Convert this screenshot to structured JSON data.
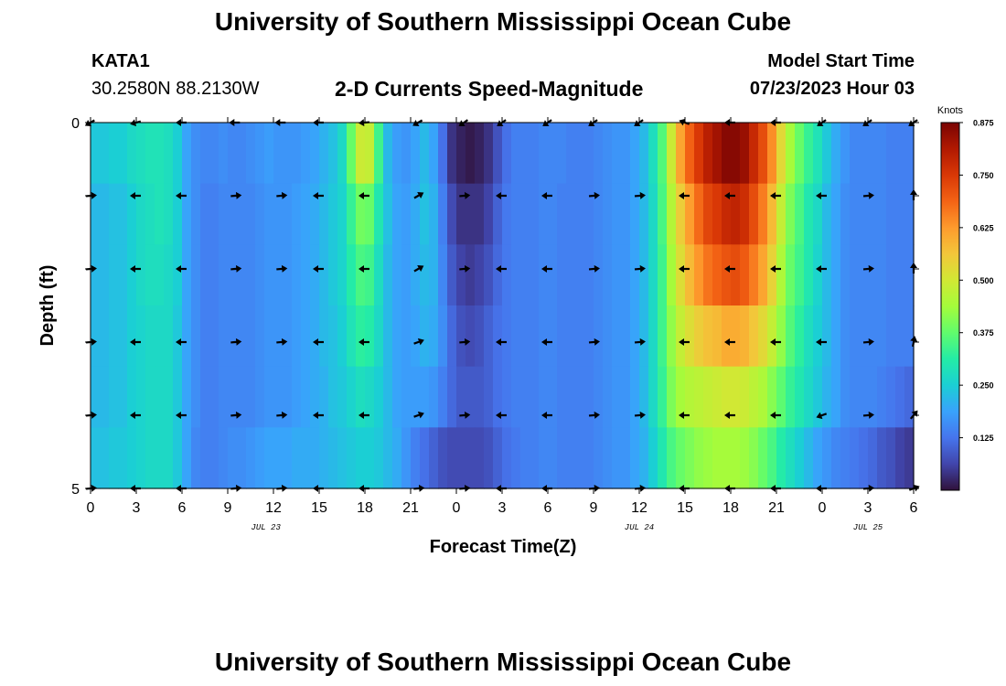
{
  "header": {
    "title": "University of Southern Mississippi Ocean Cube",
    "station": "KATA1",
    "coords": "30.2580N  88.2130W",
    "subtitle": "2-D Currents Speed-Magnitude",
    "model_start_label": "Model Start Time",
    "model_start_value": "07/23/2023 Hour 03"
  },
  "footer": {
    "title": "University of Southern Mississippi Ocean Cube"
  },
  "chart_data": {
    "type": "heatmap",
    "title": "2-D Currents Speed-Magnitude",
    "xlabel": "Forecast Time(Z)",
    "ylabel": "Depth (ft)",
    "x_hours": [
      0,
      54
    ],
    "xlim": [
      0,
      54
    ],
    "ylim": [
      0,
      5
    ],
    "x_tick_hours": [
      0,
      3,
      6,
      9,
      12,
      15,
      18,
      21,
      24,
      27,
      30,
      33,
      36,
      39,
      42,
      45,
      48,
      51,
      54
    ],
    "x_tick_labels": [
      "0",
      "3",
      "6",
      "9",
      "12",
      "15",
      "18",
      "21",
      "0",
      "3",
      "6",
      "9",
      "12",
      "15",
      "18",
      "21",
      "0",
      "3",
      "6"
    ],
    "y_tick_values": [
      0,
      1,
      2,
      3,
      4,
      5
    ],
    "y_tick_labels": [
      "0",
      "",
      "",
      "",
      "",
      "5"
    ],
    "date_labels": [
      {
        "hour": 11.5,
        "text": "JUL 23"
      },
      {
        "hour": 36,
        "text": "JUL 24"
      },
      {
        "hour": 51,
        "text": "JUL 25"
      }
    ],
    "colorbar": {
      "label": "Knots",
      "min": 0,
      "max": 0.875,
      "ticks": [
        0.125,
        0.25,
        0.375,
        0.5,
        0.625,
        0.75,
        0.875
      ],
      "tick_labels": [
        "0.125",
        "0.250",
        "0.375",
        "0.500",
        "0.625",
        "0.750",
        "0.875"
      ],
      "colors": [
        "#30123b",
        "#4145ab",
        "#4675ed",
        "#39a2fc",
        "#1bcfd4",
        "#24eca6",
        "#61fc6c",
        "#a4fc3b",
        "#d1e834",
        "#f3c63a",
        "#fe9b2d",
        "#f36315",
        "#d93806",
        "#b11901",
        "#7a0403"
      ]
    },
    "speed_knots": [
      [
        0.24,
        0.24,
        0.25,
        0.25,
        0.27,
        0.28,
        0.29,
        0.29,
        0.28,
        0.25,
        0.19,
        0.16,
        0.15,
        0.15,
        0.16,
        0.15,
        0.15,
        0.16,
        0.17,
        0.18,
        0.17,
        0.17,
        0.17,
        0.18,
        0.19,
        0.21,
        0.23,
        0.27,
        0.38,
        0.49,
        0.48,
        0.34,
        0.22,
        0.18,
        0.17,
        0.19,
        0.22,
        0.19,
        0.12,
        0.04,
        0.02,
        0.01,
        0.02,
        0.04,
        0.08,
        0.12,
        0.14,
        0.14,
        0.14,
        0.15,
        0.15,
        0.15,
        0.14,
        0.14,
        0.14,
        0.15,
        0.16,
        0.17,
        0.17,
        0.19,
        0.22,
        0.28,
        0.36,
        0.49,
        0.61,
        0.69,
        0.75,
        0.8,
        0.83,
        0.86,
        0.86,
        0.84,
        0.78,
        0.72,
        0.64,
        0.53,
        0.44,
        0.38,
        0.33,
        0.29,
        0.24,
        0.2,
        0.17,
        0.15,
        0.15,
        0.15,
        0.15,
        0.14,
        0.14,
        0.14
      ],
      [
        0.22,
        0.22,
        0.23,
        0.23,
        0.25,
        0.27,
        0.28,
        0.29,
        0.28,
        0.25,
        0.19,
        0.16,
        0.14,
        0.14,
        0.15,
        0.15,
        0.15,
        0.15,
        0.16,
        0.17,
        0.17,
        0.17,
        0.18,
        0.19,
        0.2,
        0.22,
        0.24,
        0.26,
        0.33,
        0.39,
        0.38,
        0.3,
        0.23,
        0.19,
        0.18,
        0.2,
        0.23,
        0.21,
        0.14,
        0.07,
        0.04,
        0.04,
        0.04,
        0.06,
        0.1,
        0.13,
        0.14,
        0.14,
        0.14,
        0.15,
        0.15,
        0.14,
        0.14,
        0.14,
        0.14,
        0.15,
        0.16,
        0.17,
        0.17,
        0.19,
        0.22,
        0.27,
        0.35,
        0.46,
        0.55,
        0.62,
        0.68,
        0.73,
        0.75,
        0.78,
        0.79,
        0.77,
        0.72,
        0.66,
        0.58,
        0.48,
        0.4,
        0.35,
        0.3,
        0.27,
        0.22,
        0.19,
        0.16,
        0.15,
        0.15,
        0.15,
        0.15,
        0.14,
        0.14,
        0.14
      ],
      [
        0.22,
        0.22,
        0.23,
        0.23,
        0.25,
        0.27,
        0.28,
        0.28,
        0.27,
        0.25,
        0.19,
        0.16,
        0.14,
        0.14,
        0.15,
        0.15,
        0.15,
        0.15,
        0.16,
        0.17,
        0.17,
        0.17,
        0.18,
        0.19,
        0.2,
        0.22,
        0.24,
        0.26,
        0.31,
        0.35,
        0.34,
        0.28,
        0.22,
        0.19,
        0.18,
        0.2,
        0.22,
        0.21,
        0.15,
        0.09,
        0.06,
        0.05,
        0.06,
        0.08,
        0.11,
        0.13,
        0.14,
        0.14,
        0.14,
        0.15,
        0.15,
        0.14,
        0.14,
        0.14,
        0.14,
        0.15,
        0.16,
        0.17,
        0.17,
        0.19,
        0.22,
        0.27,
        0.34,
        0.44,
        0.52,
        0.58,
        0.63,
        0.67,
        0.69,
        0.71,
        0.72,
        0.7,
        0.66,
        0.61,
        0.54,
        0.45,
        0.38,
        0.34,
        0.3,
        0.26,
        0.22,
        0.19,
        0.16,
        0.15,
        0.15,
        0.15,
        0.15,
        0.14,
        0.14,
        0.14
      ],
      [
        0.22,
        0.22,
        0.23,
        0.23,
        0.25,
        0.26,
        0.27,
        0.27,
        0.27,
        0.24,
        0.19,
        0.16,
        0.14,
        0.14,
        0.15,
        0.15,
        0.15,
        0.15,
        0.16,
        0.17,
        0.17,
        0.17,
        0.18,
        0.19,
        0.2,
        0.22,
        0.23,
        0.25,
        0.29,
        0.32,
        0.31,
        0.27,
        0.22,
        0.19,
        0.18,
        0.19,
        0.21,
        0.2,
        0.16,
        0.11,
        0.08,
        0.07,
        0.08,
        0.1,
        0.12,
        0.13,
        0.14,
        0.14,
        0.14,
        0.15,
        0.15,
        0.14,
        0.14,
        0.14,
        0.14,
        0.15,
        0.16,
        0.17,
        0.17,
        0.19,
        0.22,
        0.27,
        0.34,
        0.42,
        0.48,
        0.52,
        0.55,
        0.57,
        0.58,
        0.6,
        0.6,
        0.59,
        0.56,
        0.53,
        0.48,
        0.42,
        0.36,
        0.32,
        0.28,
        0.25,
        0.22,
        0.19,
        0.16,
        0.15,
        0.15,
        0.15,
        0.15,
        0.14,
        0.14,
        0.14
      ],
      [
        0.22,
        0.22,
        0.23,
        0.23,
        0.25,
        0.26,
        0.27,
        0.27,
        0.27,
        0.24,
        0.19,
        0.16,
        0.14,
        0.14,
        0.15,
        0.15,
        0.15,
        0.15,
        0.16,
        0.17,
        0.17,
        0.17,
        0.18,
        0.19,
        0.2,
        0.21,
        0.23,
        0.24,
        0.26,
        0.28,
        0.27,
        0.25,
        0.22,
        0.19,
        0.18,
        0.18,
        0.18,
        0.17,
        0.14,
        0.11,
        0.09,
        0.09,
        0.09,
        0.1,
        0.12,
        0.13,
        0.14,
        0.14,
        0.14,
        0.15,
        0.15,
        0.14,
        0.14,
        0.14,
        0.14,
        0.15,
        0.16,
        0.17,
        0.17,
        0.19,
        0.22,
        0.27,
        0.33,
        0.4,
        0.44,
        0.46,
        0.47,
        0.48,
        0.49,
        0.5,
        0.5,
        0.49,
        0.47,
        0.45,
        0.41,
        0.37,
        0.33,
        0.3,
        0.27,
        0.24,
        0.21,
        0.19,
        0.16,
        0.15,
        0.15,
        0.15,
        0.14,
        0.13,
        0.12,
        0.11
      ],
      [
        0.23,
        0.23,
        0.24,
        0.24,
        0.25,
        0.26,
        0.27,
        0.27,
        0.27,
        0.24,
        0.19,
        0.15,
        0.14,
        0.14,
        0.15,
        0.16,
        0.16,
        0.17,
        0.18,
        0.19,
        0.19,
        0.19,
        0.2,
        0.2,
        0.2,
        0.21,
        0.22,
        0.23,
        0.24,
        0.25,
        0.25,
        0.24,
        0.22,
        0.2,
        0.17,
        0.14,
        0.12,
        0.1,
        0.08,
        0.07,
        0.07,
        0.07,
        0.07,
        0.08,
        0.1,
        0.12,
        0.13,
        0.14,
        0.14,
        0.15,
        0.15,
        0.14,
        0.14,
        0.14,
        0.14,
        0.15,
        0.16,
        0.17,
        0.17,
        0.19,
        0.21,
        0.25,
        0.3,
        0.35,
        0.38,
        0.4,
        0.42,
        0.43,
        0.44,
        0.44,
        0.44,
        0.43,
        0.41,
        0.38,
        0.35,
        0.31,
        0.28,
        0.25,
        0.22,
        0.19,
        0.17,
        0.15,
        0.14,
        0.13,
        0.12,
        0.11,
        0.09,
        0.08,
        0.06,
        0.05
      ]
    ],
    "arrow_hours": [
      0,
      3,
      6,
      9.5,
      12.5,
      15,
      18,
      21.5,
      24.5,
      27,
      30,
      33,
      36,
      39,
      42,
      45,
      48,
      51,
      54
    ],
    "arrow_depths": [
      0,
      1,
      2,
      3,
      4,
      5
    ],
    "arrow_directions_deg": [
      [
        210,
        195,
        180,
        180,
        180,
        180,
        185,
        210,
        215,
        215,
        215,
        215,
        215,
        160,
        180,
        180,
        215,
        215,
        215
      ],
      [
        5,
        180,
        180,
        5,
        5,
        180,
        180,
        30,
        5,
        180,
        180,
        5,
        5,
        180,
        180,
        180,
        180,
        5,
        90
      ],
      [
        5,
        180,
        180,
        5,
        5,
        180,
        180,
        30,
        5,
        180,
        180,
        5,
        5,
        180,
        180,
        180,
        180,
        5,
        90
      ],
      [
        5,
        180,
        180,
        5,
        5,
        180,
        180,
        20,
        5,
        180,
        180,
        5,
        5,
        180,
        180,
        180,
        180,
        5,
        80
      ],
      [
        5,
        180,
        180,
        5,
        5,
        180,
        180,
        20,
        5,
        180,
        180,
        5,
        5,
        180,
        180,
        180,
        200,
        5,
        50
      ],
      [
        5,
        180,
        180,
        5,
        5,
        180,
        180,
        5,
        5,
        180,
        180,
        5,
        5,
        180,
        180,
        180,
        180,
        5,
        20
      ]
    ]
  }
}
